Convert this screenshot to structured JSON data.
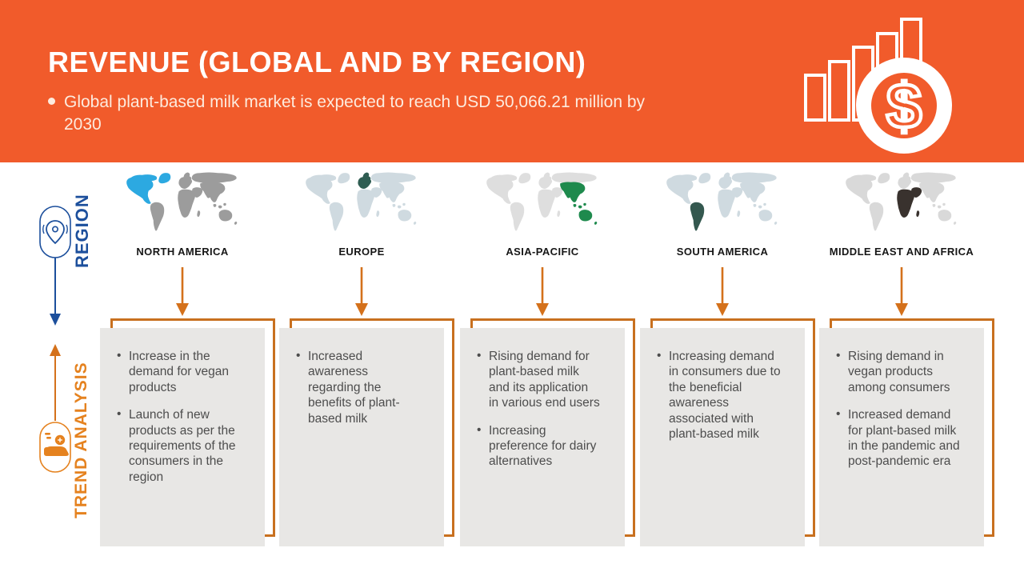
{
  "header": {
    "title": "REVENUE (GLOBAL AND BY REGION)",
    "subtitle": "Global plant-based milk market is expected to reach USD 50,066.21 million by 2030",
    "year_target": "2030",
    "market_value": "USD 50,066.21 million"
  },
  "sidebar": {
    "region_label": "REGION",
    "trend_label": "TREND ANALYSIS"
  },
  "icons": {
    "header_icon": "bar-chart-dollar-icon",
    "region_icon": "location-pin-icon",
    "trend_icon": "hand-coin-icon",
    "column_arrow": "down-arrow-icon",
    "rail_arrows": [
      "down-arrow-icon",
      "up-arrow-icon"
    ]
  },
  "colors": {
    "header_bg": "#F15B2B",
    "arrow": "#D4711B",
    "frame": "#C8701F",
    "card_bg": "#E8E7E5",
    "card_text": "#4D4D4D",
    "region_blue": "#1C4F9C",
    "trend_orange": "#E5821F"
  },
  "chart_data": {
    "type": "table",
    "title": "Revenue (Global and by Region)",
    "key_fact": "Global plant-based milk market is expected to reach USD 50,066.21 million by 2030",
    "row_labels": [
      "Region",
      "Trend Analysis"
    ],
    "categories": [
      "NORTH AMERICA",
      "EUROPE",
      "ASIA-PACIFIC",
      "SOUTH AMERICA",
      "MIDDLE EAST AND AFRICA"
    ]
  },
  "columns": [
    {
      "region": "NORTH AMERICA",
      "map": {
        "base": "#9C9C9C",
        "highlight": "#2CA9E1",
        "highlight_parts": [
          "northamerica",
          "greenland"
        ]
      },
      "trends": [
        "Increase in the demand for vegan products",
        "Launch of new products as per the requirements of the consumers in the region"
      ]
    },
    {
      "region": "EUROPE",
      "map": {
        "base": "#CFDAE0",
        "highlight": "#2F5D52",
        "highlight_parts": [
          "europe"
        ]
      },
      "trends": [
        "Increased awareness regarding the benefits of plant-based milk"
      ]
    },
    {
      "region": "ASIA-PACIFIC",
      "map": {
        "base": "#DEDEDE",
        "highlight": "#1E8A4D",
        "highlight_parts": [
          "asia",
          "seislands",
          "australia",
          "nz"
        ]
      },
      "trends": [
        "Rising demand for plant-based milk and its application in various end users",
        "Increasing preference for dairy alternatives"
      ]
    },
    {
      "region": "SOUTH AMERICA",
      "map": {
        "base": "#CFDAE0",
        "highlight": "#34584F",
        "highlight_parts": [
          "southamerica"
        ]
      },
      "trends": [
        "Increasing demand in consumers due to the beneficial awareness associated with plant-based milk"
      ]
    },
    {
      "region": "MIDDLE EAST AND AFRICA",
      "map": {
        "base": "#D9D9D9",
        "highlight": "#39322E",
        "highlight_parts": [
          "africa",
          "middleeast",
          "madagascar"
        ]
      },
      "trends": [
        "Rising demand in vegan products among consumers",
        "Increased demand for plant-based milk in the pandemic and post-pandemic era"
      ]
    }
  ]
}
